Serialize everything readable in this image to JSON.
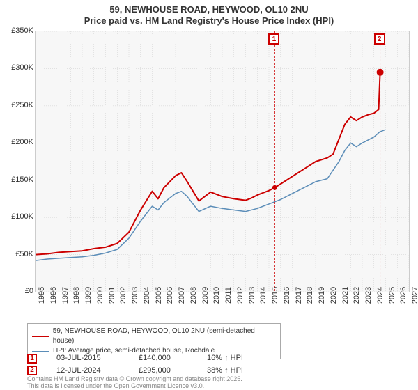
{
  "title_line1": "59, NEWHOUSE ROAD, HEYWOOD, OL10 2NU",
  "title_line2": "Price paid vs. HM Land Registry's House Price Index (HPI)",
  "chart": {
    "type": "line",
    "background_color": "#f7f7f7",
    "border_color": "#cccccc",
    "grid_color": "#cccccc",
    "inner_w": 536,
    "inner_h": 374,
    "x_min": 1995,
    "x_max": 2027,
    "x_ticks": [
      1995,
      1996,
      1997,
      1998,
      1999,
      2000,
      2001,
      2002,
      2003,
      2004,
      2005,
      2006,
      2007,
      2008,
      2009,
      2010,
      2011,
      2012,
      2013,
      2014,
      2015,
      2016,
      2017,
      2018,
      2019,
      2020,
      2021,
      2022,
      2023,
      2024,
      2025,
      2026,
      2027
    ],
    "y_min": 0,
    "y_max": 350000,
    "y_ticks": [
      {
        "v": 0,
        "label": "£0"
      },
      {
        "v": 50000,
        "label": "£50K"
      },
      {
        "v": 100000,
        "label": "£100K"
      },
      {
        "v": 150000,
        "label": "£150K"
      },
      {
        "v": 200000,
        "label": "£200K"
      },
      {
        "v": 250000,
        "label": "£250K"
      },
      {
        "v": 300000,
        "label": "£300K"
      },
      {
        "v": 350000,
        "label": "£350K"
      }
    ],
    "series": [
      {
        "name": "price_paid",
        "label": "59, NEWHOUSE ROAD, HEYWOOD, OL10 2NU (semi-detached house)",
        "color": "#cc0000",
        "line_width": 2,
        "points": [
          [
            1995,
            50000
          ],
          [
            1996,
            51000
          ],
          [
            1997,
            53000
          ],
          [
            1998,
            54000
          ],
          [
            1999,
            55000
          ],
          [
            2000,
            58000
          ],
          [
            2001,
            60000
          ],
          [
            2002,
            65000
          ],
          [
            2003,
            80000
          ],
          [
            2004,
            110000
          ],
          [
            2005,
            135000
          ],
          [
            2005.5,
            125000
          ],
          [
            2006,
            140000
          ],
          [
            2006.5,
            148000
          ],
          [
            2007,
            156000
          ],
          [
            2007.5,
            160000
          ],
          [
            2008,
            148000
          ],
          [
            2008.5,
            135000
          ],
          [
            2009,
            122000
          ],
          [
            2009.5,
            128000
          ],
          [
            2010,
            134000
          ],
          [
            2011,
            128000
          ],
          [
            2012,
            125000
          ],
          [
            2013,
            123000
          ],
          [
            2013.5,
            126000
          ],
          [
            2014,
            130000
          ],
          [
            2015,
            136000
          ],
          [
            2015.5,
            140000
          ],
          [
            2016,
            145000
          ],
          [
            2017,
            155000
          ],
          [
            2018,
            165000
          ],
          [
            2019,
            175000
          ],
          [
            2020,
            180000
          ],
          [
            2020.5,
            185000
          ],
          [
            2021,
            205000
          ],
          [
            2021.5,
            225000
          ],
          [
            2022,
            235000
          ],
          [
            2022.5,
            230000
          ],
          [
            2023,
            235000
          ],
          [
            2023.5,
            238000
          ],
          [
            2024,
            240000
          ],
          [
            2024.4,
            245000
          ],
          [
            2024.53,
            295000
          ]
        ]
      },
      {
        "name": "hpi",
        "label": "HPI: Average price, semi-detached house, Rochdale",
        "color": "#5b8db8",
        "line_width": 1.5,
        "points": [
          [
            1995,
            42000
          ],
          [
            1996,
            44000
          ],
          [
            1997,
            45000
          ],
          [
            1998,
            46000
          ],
          [
            1999,
            47000
          ],
          [
            2000,
            49000
          ],
          [
            2001,
            52000
          ],
          [
            2002,
            57000
          ],
          [
            2003,
            72000
          ],
          [
            2004,
            95000
          ],
          [
            2005,
            115000
          ],
          [
            2005.5,
            110000
          ],
          [
            2006,
            120000
          ],
          [
            2007,
            132000
          ],
          [
            2007.5,
            135000
          ],
          [
            2008,
            128000
          ],
          [
            2008.5,
            118000
          ],
          [
            2009,
            108000
          ],
          [
            2010,
            115000
          ],
          [
            2011,
            112000
          ],
          [
            2012,
            110000
          ],
          [
            2013,
            108000
          ],
          [
            2014,
            112000
          ],
          [
            2015,
            118000
          ],
          [
            2016,
            124000
          ],
          [
            2017,
            132000
          ],
          [
            2018,
            140000
          ],
          [
            2019,
            148000
          ],
          [
            2020,
            152000
          ],
          [
            2021,
            175000
          ],
          [
            2021.5,
            190000
          ],
          [
            2022,
            200000
          ],
          [
            2022.5,
            195000
          ],
          [
            2023,
            200000
          ],
          [
            2024,
            208000
          ],
          [
            2024.5,
            215000
          ],
          [
            2025,
            218000
          ]
        ]
      }
    ],
    "sale_points": [
      {
        "num": "1",
        "x": 2015.5,
        "y": 140000,
        "r": 3.5,
        "fill": "#cc0000"
      },
      {
        "num": "2",
        "x": 2024.53,
        "y": 295000,
        "r": 5,
        "fill": "#cc0000"
      }
    ]
  },
  "legend": {
    "border_color": "#aaaaaa"
  },
  "sales": [
    {
      "num": "1",
      "date": "03-JUL-2015",
      "price": "£140,000",
      "pct": "16% ↑ HPI"
    },
    {
      "num": "2",
      "date": "12-JUL-2024",
      "price": "£295,000",
      "pct": "38% ↑ HPI"
    }
  ],
  "footer_line1": "Contains HM Land Registry data © Crown copyright and database right 2025.",
  "footer_line2": "This data is licensed under the Open Government Licence v3.0.",
  "fontsize": {
    "title": 13,
    "tick": 11,
    "legend": 10,
    "sales": 11,
    "footer": 9
  }
}
